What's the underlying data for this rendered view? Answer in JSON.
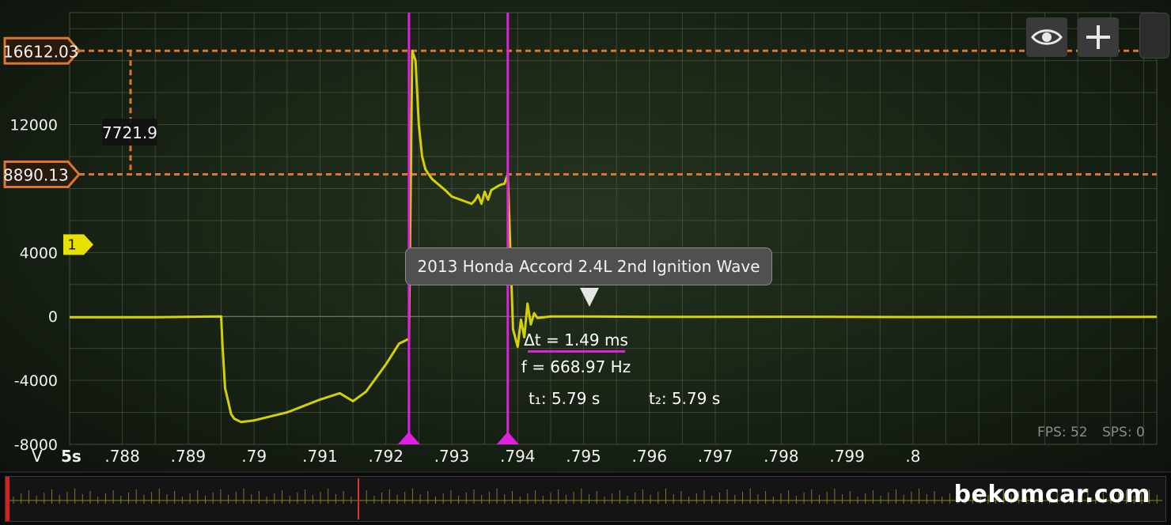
{
  "chart_data": {
    "type": "line",
    "title": "2013 Honda Accord 2.4L 2nd Ignition Wave",
    "xlabel": "5s",
    "ylabel": "V",
    "xlim": [
      0.7872,
      0.8037
    ],
    "ylim": [
      -8000,
      19000
    ],
    "y_ticks": [
      {
        "value": 12000,
        "label": "12000"
      },
      {
        "value": 4000,
        "label": "4000"
      },
      {
        "value": 0,
        "label": "0"
      },
      {
        "value": -4000,
        "label": "-4000"
      },
      {
        "value": -8000,
        "label": "-8000"
      }
    ],
    "x_ticks": [
      {
        "value": 0.788,
        "label": ".788"
      },
      {
        "value": 0.789,
        "label": ".789"
      },
      {
        "value": 0.79,
        "label": ".79"
      },
      {
        "value": 0.791,
        "label": ".791"
      },
      {
        "value": 0.792,
        "label": ".792"
      },
      {
        "value": 0.793,
        "label": ".793"
      },
      {
        "value": 0.794,
        "label": ".794"
      },
      {
        "value": 0.795,
        "label": ".795"
      },
      {
        "value": 0.796,
        "label": ".796"
      },
      {
        "value": 0.797,
        "label": ".797"
      },
      {
        "value": 0.798,
        "label": ".798"
      },
      {
        "value": 0.799,
        "label": ".799"
      },
      {
        "value": 0.8,
        "label": ".8"
      }
    ],
    "grid": true,
    "series": [
      {
        "name": "1",
        "color": "#e3e000",
        "x": [
          0.7872,
          0.7885,
          0.7895,
          0.78952,
          0.78956,
          0.7896,
          0.78965,
          0.7897,
          0.7898,
          0.79,
          0.7905,
          0.791,
          0.7913,
          0.7915,
          0.7917,
          0.792,
          0.7922,
          0.79235,
          0.7924,
          0.79245,
          0.7925,
          0.79255,
          0.7926,
          0.79265,
          0.7927,
          0.7928,
          0.7929,
          0.793,
          0.7932,
          0.7933,
          0.79335,
          0.7934,
          0.79345,
          0.7935,
          0.79355,
          0.7936,
          0.7937,
          0.79375,
          0.7938,
          0.79385,
          0.79393,
          0.794,
          0.79405,
          0.7941,
          0.79415,
          0.7942,
          0.79425,
          0.7943,
          0.7945,
          0.795,
          0.796,
          0.798,
          0.8,
          0.8037
        ],
        "y": [
          -50,
          -50,
          0,
          -1800,
          -4500,
          -5200,
          -6100,
          -6400,
          -6600,
          -6500,
          -6000,
          -5200,
          -4800,
          -5300,
          -4700,
          -3000,
          -1700,
          -1400,
          16612,
          16000,
          12000,
          10000,
          9200,
          8890,
          8600,
          8250,
          7900,
          7500,
          7200,
          7050,
          7250,
          7600,
          7050,
          7800,
          7300,
          7900,
          8150,
          8250,
          8300,
          8890,
          -800,
          -1900,
          -200,
          -1300,
          800,
          -500,
          200,
          -100,
          0,
          0,
          -30,
          -20,
          -40,
          -30
        ]
      }
    ],
    "channel_marker": {
      "label": "1",
      "value": 4000
    },
    "cursors": {
      "horizontal": [
        {
          "value": 16612.03,
          "label": "16612.03"
        },
        {
          "value": 8890.13,
          "label": "8890.13"
        }
      ],
      "delta_label": "7721.9",
      "vertical": [
        {
          "value": 0.79235,
          "label": "t₁: 5.79 s"
        },
        {
          "value": 0.79385,
          "label": "t₂: 5.79 s"
        }
      ],
      "delta_t": "Δt = 1.49 ms",
      "frequency": "f = 668.97 Hz"
    },
    "annotation": "2013 Honda Accord 2.4L 2nd Ignition Wave"
  },
  "status": {
    "fps": "FPS: 52",
    "sps": "SPS: 0"
  },
  "toolbar": {
    "eye_icon": "eye-icon",
    "add_icon": "plus-icon"
  },
  "watermark": "bekomcar.com",
  "colors": {
    "trace": "#e3e000",
    "cursor_v": "#e020e0",
    "cursor_h": "#d9772a",
    "grid": "#56654c"
  }
}
